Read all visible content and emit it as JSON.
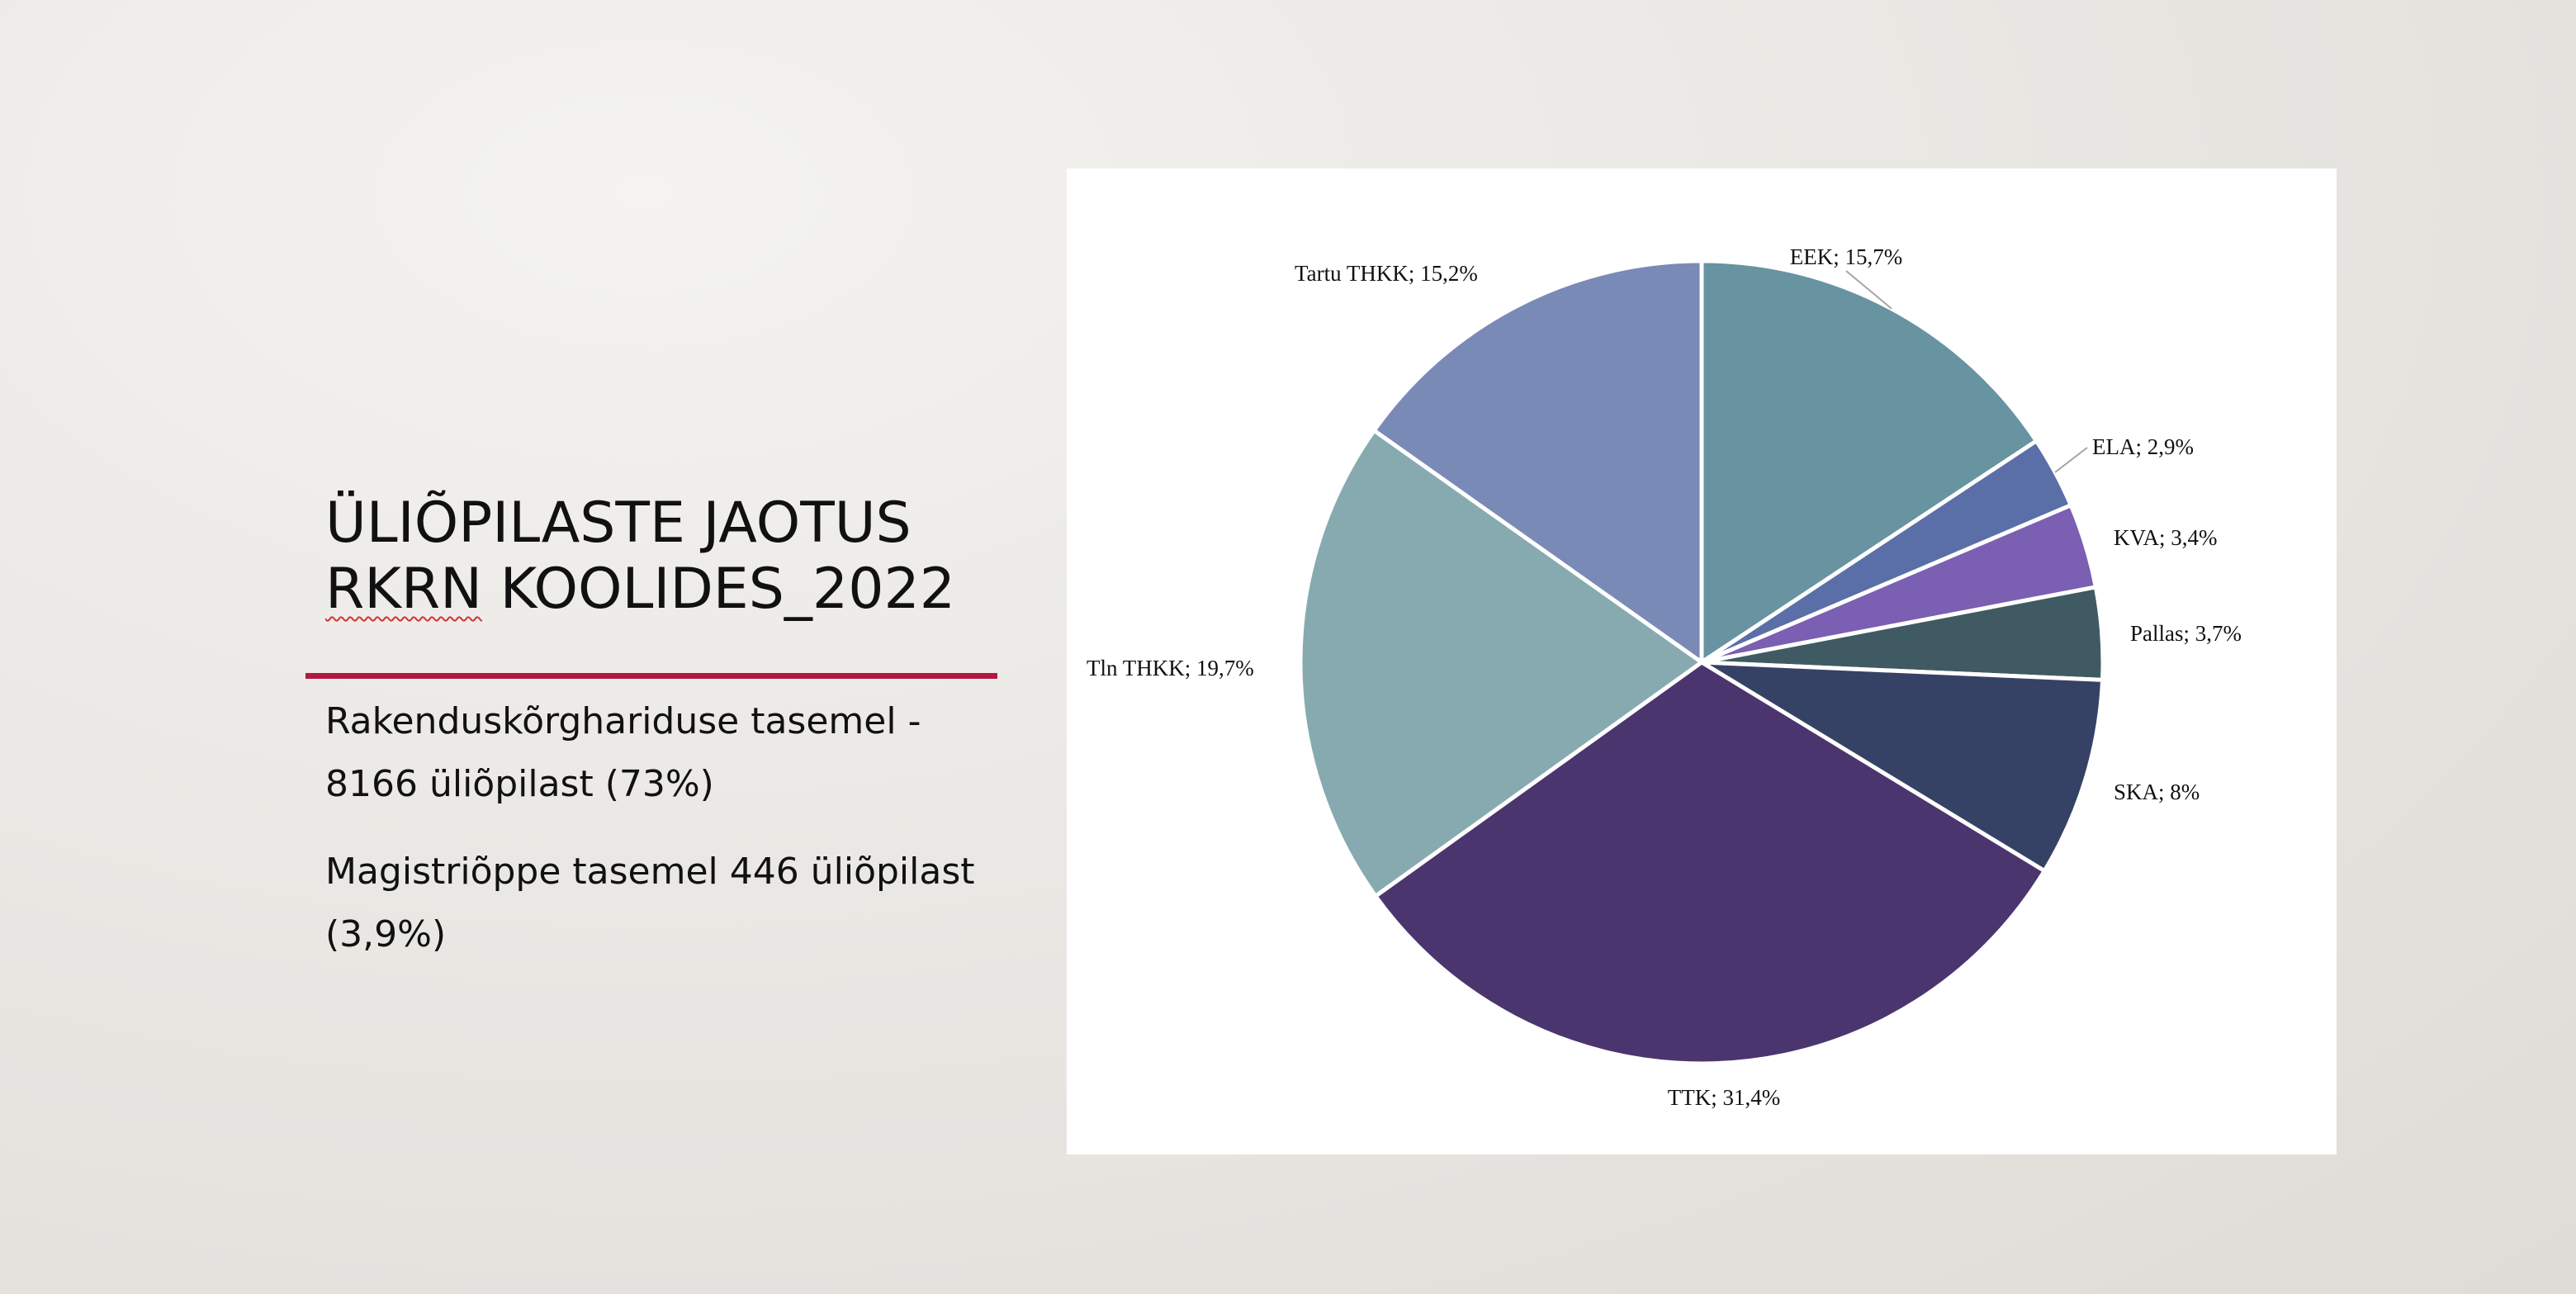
{
  "slide": {
    "title_line1": "ÜLIÕPILASTE JAOTUS",
    "title_line2_underlined": "RKRN",
    "title_line2_rest": " KOOLIDES_2022",
    "paragraph1": "Rakenduskõrghariduse tasemel - 8166 üliõpilast (73%)",
    "paragraph2": "Magistriõppe tasemel 446 üliõpilast (3,9%)",
    "accent_color": "#b3163f"
  },
  "chart_data": {
    "type": "pie",
    "title": "",
    "slices": [
      {
        "label": "EEK; 15,7%",
        "category": "EEK",
        "value": 15.7,
        "color": "#6893a1"
      },
      {
        "label": "ELA; 2,9%",
        "category": "ELA",
        "value": 2.9,
        "color": "#5a6fa8"
      },
      {
        "label": "KVA; 3,4%",
        "category": "KVA",
        "value": 3.4,
        "color": "#7b5fb2"
      },
      {
        "label": "Pallas; 3,7%",
        "category": "Pallas",
        "value": 3.7,
        "color": "#3f5a62"
      },
      {
        "label": "SKA; 8%",
        "category": "SKA",
        "value": 8.0,
        "color": "#364265"
      },
      {
        "label": "TTK; 31,4%",
        "category": "TTK",
        "value": 31.4,
        "color": "#4b356e"
      },
      {
        "label": "Tln THKK; 19,7%",
        "category": "Tln THKK",
        "value": 19.7,
        "color": "#87aab1"
      },
      {
        "label": "Tartu THKK; 15,2%",
        "category": "Tartu THKK",
        "value": 15.2,
        "color": "#7a8ab7"
      }
    ],
    "start_angle": "12 o'clock",
    "direction": "clockwise",
    "data_labels": "category; percent",
    "legend": "none"
  }
}
